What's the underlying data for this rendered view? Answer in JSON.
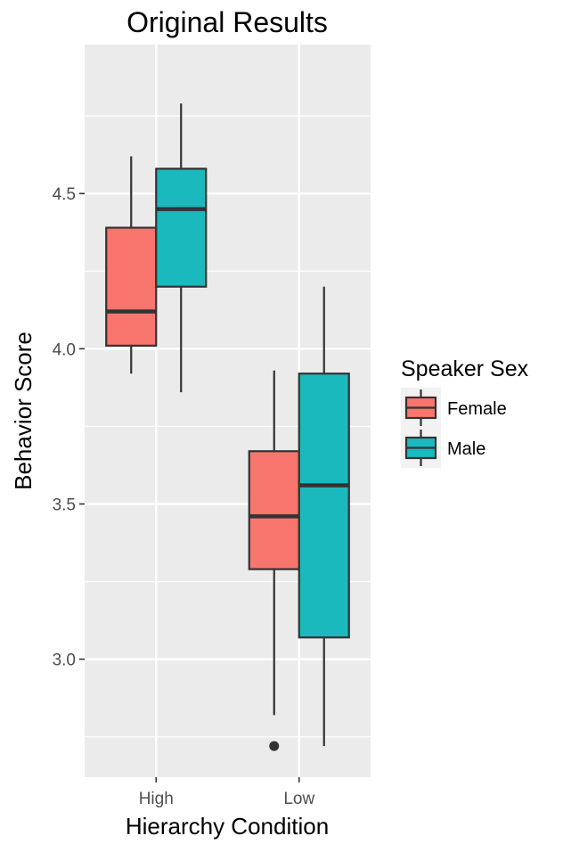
{
  "chart_data": {
    "type": "boxplot",
    "title": "Original Results",
    "xlabel": "Hierarchy Condition",
    "ylabel": "Behavior Score",
    "ylim": [
      2.62,
      4.98
    ],
    "yticks": [
      3.0,
      3.5,
      4.0,
      4.5
    ],
    "ytick_labels": [
      "3.0",
      "3.5",
      "4.0",
      "4.5"
    ],
    "categories": [
      "High",
      "Low"
    ],
    "grid": true,
    "legend_position": "right",
    "legend_title": "Speaker Sex",
    "series": [
      {
        "name": "Female",
        "color": "#F8766D",
        "boxes": [
          {
            "category": "High",
            "whisker_low": 3.92,
            "q1": 4.01,
            "median": 4.12,
            "q3": 4.39,
            "whisker_high": 4.62,
            "outliers": []
          },
          {
            "category": "Low",
            "whisker_low": 2.82,
            "q1": 3.29,
            "median": 3.46,
            "q3": 3.67,
            "whisker_high": 3.93,
            "outliers": [
              2.72
            ]
          }
        ]
      },
      {
        "name": "Male",
        "color": "#19B9BD",
        "boxes": [
          {
            "category": "High",
            "whisker_low": 3.86,
            "q1": 4.2,
            "median": 4.45,
            "q3": 4.58,
            "whisker_high": 4.79,
            "outliers": []
          },
          {
            "category": "Low",
            "whisker_low": 2.72,
            "q1": 3.07,
            "median": 3.56,
            "q3": 3.92,
            "whisker_high": 4.2,
            "outliers": []
          }
        ]
      }
    ]
  }
}
